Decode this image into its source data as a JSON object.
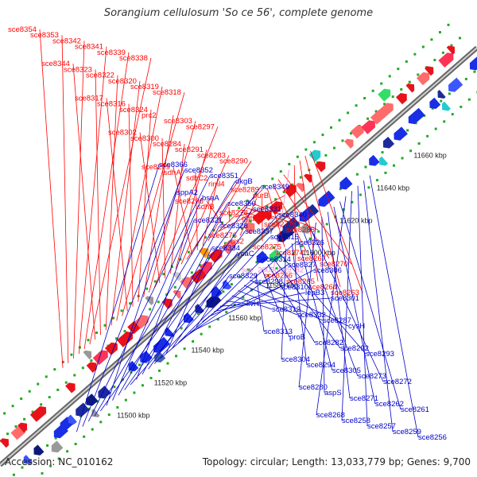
{
  "title": "Sorangium cellulosum 'So ce 56', complete genome",
  "footer": {
    "accession": "Accession: NC_010162",
    "summary": "Topology: circular; Length: 13,033,779 bp; Genes: 9,700"
  },
  "colors": {
    "forward_gene": "#e8131a",
    "reverse_gene": "#1a2ee6",
    "forward_label": "#ff0000",
    "reverse_label": "#0000cc",
    "highlight_label": "#ee88cc",
    "axis": "#888888",
    "tick": "#22aa22"
  },
  "kbp_labels": [
    {
      "text": "11500 kbp"
    },
    {
      "text": "11520 kbp"
    },
    {
      "text": "11540 kbp"
    },
    {
      "text": "11560 kbp"
    },
    {
      "text": "11580 kbp"
    },
    {
      "text": "11600 kbp"
    },
    {
      "text": "11620 kbp"
    },
    {
      "text": "11640 kbp"
    },
    {
      "text": "11660 kbp"
    }
  ],
  "forward_labels": [
    "sce8354",
    "sce8353",
    "sce8342",
    "sce8341",
    "sce8339",
    "sce8338",
    "sce8344",
    "sce8323",
    "sce8322",
    "sce8320",
    "sce8319",
    "sce8318",
    "sce8317",
    "sce8316",
    "sce8324",
    "prc2",
    "sce8303",
    "sce8297",
    "sce8302",
    "sce8300",
    "sce8284",
    "sce8291",
    "sce8283",
    "sce8290",
    "sce8279",
    "sdhA",
    "sdhC2",
    "riml4",
    "sce8289",
    "purB",
    "sce8296",
    "sdhB",
    "sce8278",
    "ggt2",
    "sce8277",
    "sce8285",
    "sce8276",
    "cis2",
    "sce8275",
    "sce8274",
    "sce8267",
    "sce8270",
    "sce_20050509_82",
    "sce8266",
    "sce8265",
    "sce8264",
    "sce8263"
  ],
  "reverse_labels": [
    "sce8366",
    "sce8352",
    "sce8351",
    "dkgB",
    "sce8349",
    "sppA2",
    "bsaA",
    "sce8350",
    "sce8331",
    "sce8340",
    "sce8321",
    "sce8328",
    "sce8337",
    "sce8315",
    "sce8326",
    "sce8334",
    "ycaC",
    "sce8314",
    "sce8327",
    "sce8306",
    "sce8329",
    "sce8298",
    "sce8310",
    "lepB3",
    "sce8301",
    "livH",
    "sce8312",
    "sce8332",
    "sce8287",
    "cysH",
    "sce8313",
    "proB",
    "sce8282",
    "sce8292",
    "sce8293",
    "sce8304",
    "sce8294",
    "sce8305",
    "sce8273",
    "sce8272",
    "sce8280",
    "aspS",
    "sce8271",
    "sce8262",
    "sce8261",
    "sce8268",
    "sce8258",
    "sce8257",
    "sce8259",
    "sce8256"
  ]
}
